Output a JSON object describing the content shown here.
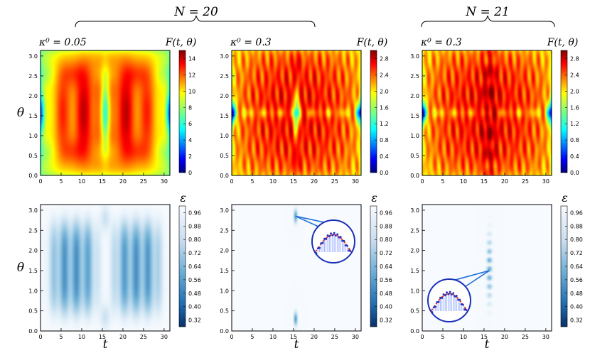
{
  "figure": {
    "group_labels": [
      "N = 20",
      "N = 21"
    ],
    "bottom_cbar_label": "ε",
    "top_cbar_label": "F(t, θ)"
  },
  "chart_data": [
    {
      "type": "heatmap",
      "row": "top",
      "title": "κ⁰ = 0.05",
      "xlabel": "",
      "ylabel": "θ",
      "x_ticks": [
        "0",
        "5",
        "10",
        "15",
        "20",
        "25",
        "30"
      ],
      "y_ticks": [
        "0.0",
        "0.5",
        "1.0",
        "1.5",
        "2.0",
        "2.5",
        "3.0"
      ],
      "xlim": [
        0,
        31.4
      ],
      "ylim": [
        0,
        3.14
      ],
      "colorbar": {
        "label": "F(t, θ)",
        "ticks": [
          "0",
          "2",
          "4",
          "6",
          "8",
          "10",
          "12",
          "14"
        ],
        "range": [
          0,
          15
        ]
      },
      "pattern": "k005"
    },
    {
      "type": "heatmap",
      "row": "top",
      "title": "κ⁰ = 0.3",
      "xlabel": "",
      "ylabel": "",
      "x_ticks": [
        "0",
        "5",
        "10",
        "15",
        "20",
        "25",
        "30"
      ],
      "y_ticks": [
        "0.0",
        "0.5",
        "1.0",
        "1.5",
        "2.0",
        "2.5",
        "3.0"
      ],
      "xlim": [
        0,
        31.4
      ],
      "ylim": [
        0,
        3.14
      ],
      "colorbar": {
        "label": "F(t, θ)",
        "ticks": [
          "0.0",
          "0.4",
          "0.8",
          "1.2",
          "1.6",
          "2.0",
          "2.4",
          "2.8"
        ],
        "range": [
          0,
          3.0
        ]
      },
      "pattern": "k03"
    },
    {
      "type": "heatmap",
      "row": "top",
      "title": "κ⁰ = 0.3",
      "xlabel": "",
      "ylabel": "",
      "x_ticks": [
        "0",
        "5",
        "10",
        "15",
        "20",
        "25",
        "30"
      ],
      "y_ticks": [
        "0.0",
        "0.5",
        "1.0",
        "1.5",
        "2.0",
        "2.5",
        "3.0"
      ],
      "xlim": [
        0,
        31.4
      ],
      "ylim": [
        0,
        3.14
      ],
      "colorbar": {
        "label": "F(t, θ)",
        "ticks": [
          "0.0",
          "0.4",
          "0.8",
          "1.2",
          "1.6",
          "2.0",
          "2.4",
          "2.8"
        ],
        "range": [
          0,
          3.0
        ]
      },
      "pattern": "k03b"
    },
    {
      "type": "heatmap",
      "row": "bottom",
      "title": "",
      "xlabel": "t",
      "ylabel": "θ",
      "x_ticks": [
        "0",
        "5",
        "10",
        "15",
        "20",
        "25",
        "30"
      ],
      "y_ticks": [
        "0.0",
        "0.5",
        "1.0",
        "1.5",
        "2.0",
        "2.5",
        "3.0"
      ],
      "xlim": [
        0,
        31.4
      ],
      "ylim": [
        0,
        3.14
      ],
      "colorbar": {
        "label": "ε",
        "ticks": [
          "0.32",
          "0.40",
          "0.48",
          "0.56",
          "0.64",
          "0.72",
          "0.80",
          "0.88",
          "0.96"
        ],
        "range": [
          0.28,
          1.0
        ]
      },
      "pattern": "e1"
    },
    {
      "type": "heatmap",
      "row": "bottom",
      "title": "",
      "xlabel": "t",
      "ylabel": "",
      "x_ticks": [
        "0",
        "5",
        "10",
        "15",
        "20",
        "25",
        "30"
      ],
      "y_ticks": [
        "0.0",
        "0.5",
        "1.0",
        "1.5",
        "2.0",
        "2.5",
        "3.0"
      ],
      "xlim": [
        0,
        31.4
      ],
      "ylim": [
        0,
        3.14
      ],
      "colorbar": {
        "label": "ε",
        "ticks": [
          "0.32",
          "0.40",
          "0.48",
          "0.56",
          "0.64",
          "0.72",
          "0.80",
          "0.88",
          "0.96"
        ],
        "range": [
          0.28,
          1.0
        ]
      },
      "pattern": "e2",
      "inset": {
        "source_point": [
          15.5,
          2.85
        ]
      }
    },
    {
      "type": "heatmap",
      "row": "bottom",
      "title": "",
      "xlabel": "t",
      "ylabel": "",
      "x_ticks": [
        "0",
        "5",
        "10",
        "15",
        "20",
        "25",
        "30"
      ],
      "y_ticks": [
        "0.0",
        "0.5",
        "1.0",
        "1.5",
        "2.0",
        "2.5",
        "3.0"
      ],
      "xlim": [
        0,
        31.4
      ],
      "ylim": [
        0,
        3.14
      ],
      "colorbar": {
        "label": "ε",
        "ticks": [
          "0.32",
          "0.40",
          "0.48",
          "0.56",
          "0.64",
          "0.72",
          "0.80",
          "0.88",
          "0.96"
        ],
        "range": [
          0.28,
          1.0
        ]
      },
      "pattern": "e3",
      "inset": {
        "source_point": [
          16.3,
          1.5
        ]
      }
    }
  ]
}
